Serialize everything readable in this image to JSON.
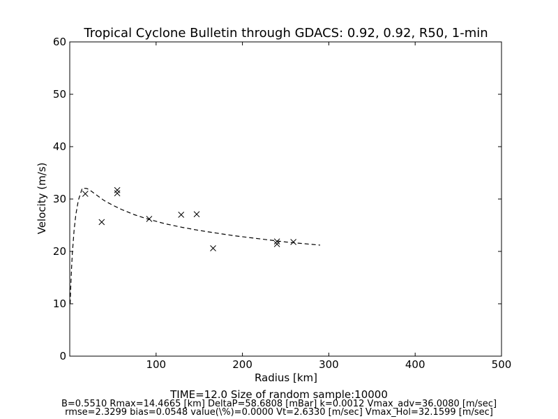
{
  "chart_data": {
    "type": "scatter",
    "title": "Tropical Cyclone Bulletin through GDACS: 0.92, 0.92, R50, 1-min",
    "xlabel": "Radius [km]",
    "ylabel": "Velocity (m/s)",
    "xlim": [
      0,
      500
    ],
    "ylim": [
      0,
      60
    ],
    "xticks": [
      100,
      200,
      300,
      400,
      500
    ],
    "yticks": [
      0,
      10,
      20,
      30,
      40,
      50,
      60
    ],
    "grid": false,
    "legend": "none",
    "series": [
      {
        "type": "scatter",
        "marker": "x",
        "color": "#000000",
        "x": [
          18,
          37,
          55,
          55,
          92,
          129,
          147,
          166,
          240,
          240,
          259
        ],
        "y": [
          31.0,
          25.6,
          31.1,
          31.7,
          26.2,
          27.0,
          27.1,
          20.6,
          21.9,
          21.4,
          21.8
        ]
      },
      {
        "type": "line",
        "style": "dashed",
        "color": "#000000",
        "x": [
          0.5,
          1,
          2,
          3,
          5,
          7,
          10,
          14.5,
          20,
          25,
          30,
          40,
          50,
          60,
          75,
          90,
          110,
          130,
          150,
          170,
          190,
          210,
          230,
          250,
          270,
          290
        ],
        "y": [
          10.0,
          12.5,
          16.6,
          19.6,
          24.0,
          27.0,
          29.8,
          32.1,
          32.0,
          31.5,
          30.9,
          29.7,
          28.8,
          28.0,
          27.0,
          26.2,
          25.3,
          24.6,
          24.0,
          23.5,
          23.0,
          22.6,
          22.2,
          21.8,
          21.5,
          21.2
        ]
      }
    ]
  },
  "footer": {
    "line1": "TIME=12.0      Size of random sample:10000",
    "line2": "B=0.5510 Rmax=14.4665 [km]  DeltaP=58.6808 [mBar] k=0.0012 Vmax_adv=36.0080 [m/sec]",
    "line3": "rmse=2.3299 bias=0.0548 value(\\%)=0.0000 Vt=2.6330 [m/sec] Vmax_Hol=32.1599 [m/sec]"
  }
}
